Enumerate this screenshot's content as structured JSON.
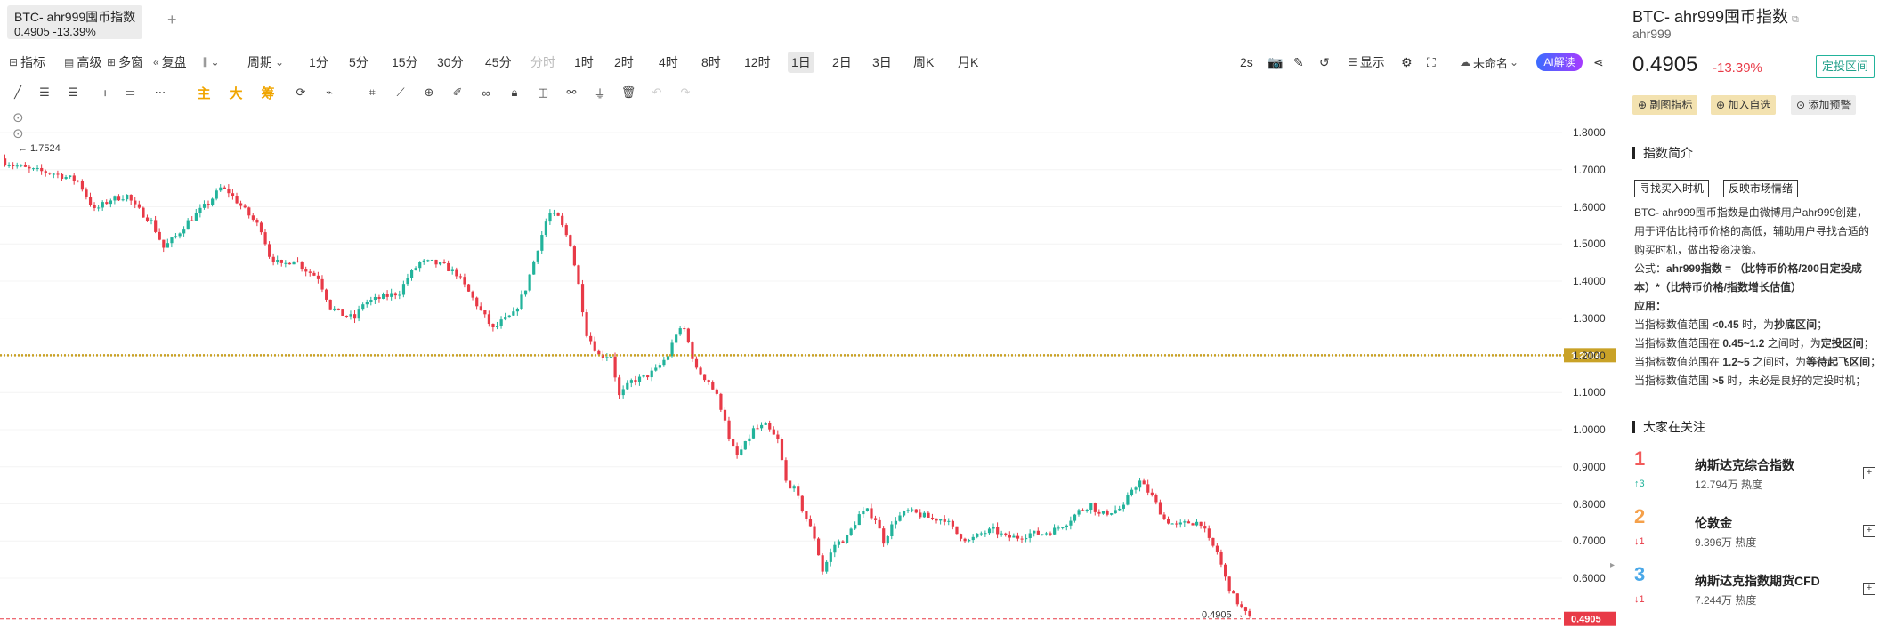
{
  "tab": {
    "title": "BTC- ahr999囤币指数",
    "subtitle": "0.4905 -13.39%",
    "add_symbol": "+"
  },
  "toolbar": {
    "indicator": "指标",
    "advanced": "高级",
    "multi_window": "多窗",
    "replay": "复盘",
    "period": "周期",
    "periods": [
      "1分",
      "5分",
      "15分",
      "30分",
      "45分",
      "分时",
      "1时",
      "2时",
      "4时",
      "8时",
      "12时",
      "1日",
      "2日",
      "3日",
      "周K",
      "月K"
    ],
    "active_period": "1日",
    "refresh_interval": "2s",
    "display": "显示",
    "layout_name": "未命名",
    "ai_label": "AI解读",
    "main_label": "主",
    "big_label": "大",
    "chip_label": "筹"
  },
  "chart_data": {
    "type": "candlestick",
    "y_ticks": [
      "1.8000",
      "1.7000",
      "1.6000",
      "1.5000",
      "1.4000",
      "1.3000",
      "1.2000",
      "1.1000",
      "1.0000",
      "0.9000",
      "0.8000",
      "0.7000",
      "0.6000"
    ],
    "ylim": [
      0.465,
      1.86
    ],
    "high_marker": "1.7524",
    "reference_line": {
      "value": 1.2004,
      "label": "1.2004",
      "color": "#c9a227"
    },
    "last_price": {
      "value": 0.4905,
      "label": "0.4905",
      "color": "#e83a47"
    },
    "up_color": "#22b39b",
    "down_color": "#e83a47",
    "close_path": [
      [
        0,
        1.72
      ],
      [
        6,
        1.7
      ],
      [
        12,
        1.69
      ],
      [
        18,
        1.67
      ],
      [
        22,
        1.59
      ],
      [
        26,
        1.62
      ],
      [
        30,
        1.63
      ],
      [
        32,
        1.6
      ],
      [
        36,
        1.56
      ],
      [
        39,
        1.49
      ],
      [
        42,
        1.52
      ],
      [
        45,
        1.56
      ],
      [
        47,
        1.58
      ],
      [
        50,
        1.61
      ],
      [
        53,
        1.65
      ],
      [
        55,
        1.64
      ],
      [
        59,
        1.59
      ],
      [
        63,
        1.54
      ],
      [
        65,
        1.47
      ],
      [
        68,
        1.44
      ],
      [
        71,
        1.46
      ],
      [
        74,
        1.43
      ],
      [
        77,
        1.41
      ],
      [
        80,
        1.33
      ],
      [
        83,
        1.31
      ],
      [
        86,
        1.3
      ],
      [
        88,
        1.34
      ],
      [
        91,
        1.35
      ],
      [
        94,
        1.36
      ],
      [
        97,
        1.37
      ],
      [
        99,
        1.41
      ],
      [
        102,
        1.45
      ],
      [
        105,
        1.45
      ],
      [
        108,
        1.44
      ],
      [
        111,
        1.42
      ],
      [
        114,
        1.37
      ],
      [
        117,
        1.32
      ],
      [
        120,
        1.27
      ],
      [
        122,
        1.29
      ],
      [
        125,
        1.31
      ],
      [
        128,
        1.38
      ],
      [
        131,
        1.49
      ],
      [
        133,
        1.56
      ],
      [
        134,
        1.58
      ],
      [
        136,
        1.57
      ],
      [
        139,
        1.5
      ],
      [
        141,
        1.39
      ],
      [
        143,
        1.26
      ],
      [
        146,
        1.2
      ],
      [
        149,
        1.2
      ],
      [
        151,
        1.09
      ],
      [
        154,
        1.13
      ],
      [
        157,
        1.14
      ],
      [
        160,
        1.16
      ],
      [
        163,
        1.2
      ],
      [
        165,
        1.26
      ],
      [
        167,
        1.27
      ],
      [
        170,
        1.16
      ],
      [
        173,
        1.13
      ],
      [
        175,
        1.09
      ],
      [
        177,
        1.03
      ],
      [
        178,
        0.97
      ],
      [
        180,
        0.93
      ],
      [
        182,
        0.96
      ],
      [
        184,
        1.0
      ],
      [
        187,
        1.01
      ],
      [
        190,
        0.97
      ],
      [
        192,
        0.86
      ],
      [
        194,
        0.84
      ],
      [
        197,
        0.76
      ],
      [
        199,
        0.71
      ],
      [
        201,
        0.62
      ],
      [
        204,
        0.69
      ],
      [
        207,
        0.71
      ],
      [
        210,
        0.77
      ],
      [
        212,
        0.78
      ],
      [
        214,
        0.76
      ],
      [
        216,
        0.7
      ],
      [
        219,
        0.76
      ],
      [
        222,
        0.78
      ],
      [
        225,
        0.77
      ],
      [
        228,
        0.76
      ],
      [
        231,
        0.76
      ],
      [
        234,
        0.72
      ],
      [
        237,
        0.7
      ],
      [
        240,
        0.72
      ],
      [
        243,
        0.73
      ],
      [
        246,
        0.71
      ],
      [
        249,
        0.71
      ],
      [
        252,
        0.72
      ],
      [
        255,
        0.72
      ],
      [
        258,
        0.73
      ],
      [
        261,
        0.75
      ],
      [
        264,
        0.78
      ],
      [
        267,
        0.8
      ],
      [
        269,
        0.77
      ],
      [
        272,
        0.78
      ],
      [
        275,
        0.79
      ],
      [
        277,
        0.84
      ],
      [
        279,
        0.86
      ],
      [
        282,
        0.82
      ],
      [
        285,
        0.76
      ],
      [
        288,
        0.74
      ],
      [
        291,
        0.75
      ],
      [
        294,
        0.75
      ],
      [
        296,
        0.7
      ],
      [
        298,
        0.67
      ],
      [
        300,
        0.6
      ],
      [
        302,
        0.55
      ],
      [
        304,
        0.52
      ],
      [
        306,
        0.4905
      ]
    ]
  },
  "right_panel": {
    "title": "BTC- ahr999囤币指数",
    "subtitle": "ahr999",
    "price": "0.4905",
    "change": "-13.39%",
    "zone_badge": "定投区间",
    "buttons": {
      "sub_indicator": "副图指标",
      "add_watch": "加入自选",
      "add_alert": "添加预警"
    },
    "intro_title": "指数简介",
    "tags": [
      "寻找买入时机",
      "反映市场情绪"
    ],
    "description": "BTC- ahr999囤币指数是由微博用户ahr999创建，用于评估比特币价格的高低，辅助用户寻找合适的购买时机，做出投资决策。",
    "formula_label": "公式：",
    "formula": "ahr999指数 = （比特币价格/200日定投成本）*（比特币价格/指数增长估值）",
    "apply_label": "应用：",
    "rules": [
      {
        "pre": "当指标数值范围 ",
        "cond": "<0.45",
        "mid": " 时，为",
        "zone": "抄底区间",
        "post": "；"
      },
      {
        "pre": "当指标数值范围在 ",
        "cond": "0.45~1.2",
        "mid": " 之间时，为",
        "zone": "定投区间",
        "post": "；"
      },
      {
        "pre": "当指标数值范围在 ",
        "cond": "1.2~5",
        "mid": " 之间时，为",
        "zone": "等待起飞区间",
        "post": "；"
      },
      {
        "pre": "当指标数值范围 ",
        "cond": ">5",
        "mid": " 时，未必是良好的定投时机",
        "zone": "",
        "post": "；"
      }
    ],
    "watch_title": "大家在关注",
    "watch_items": [
      {
        "rank": "1",
        "name": "纳斯达克综合指数",
        "heat": "12.794万 热度",
        "change": "↑3",
        "rank_color": "#f25a5a",
        "change_color": "#22b39b"
      },
      {
        "rank": "2",
        "name": "伦敦金",
        "heat": "9.396万 热度",
        "change": "↓1",
        "rank_color": "#f5a04a",
        "change_color": "#e83a47"
      },
      {
        "rank": "3",
        "name": "纳斯达克指数期货CFD",
        "heat": "7.244万 热度",
        "change": "↓1",
        "rank_color": "#4aa8e8",
        "change_color": "#e83a47"
      }
    ]
  }
}
